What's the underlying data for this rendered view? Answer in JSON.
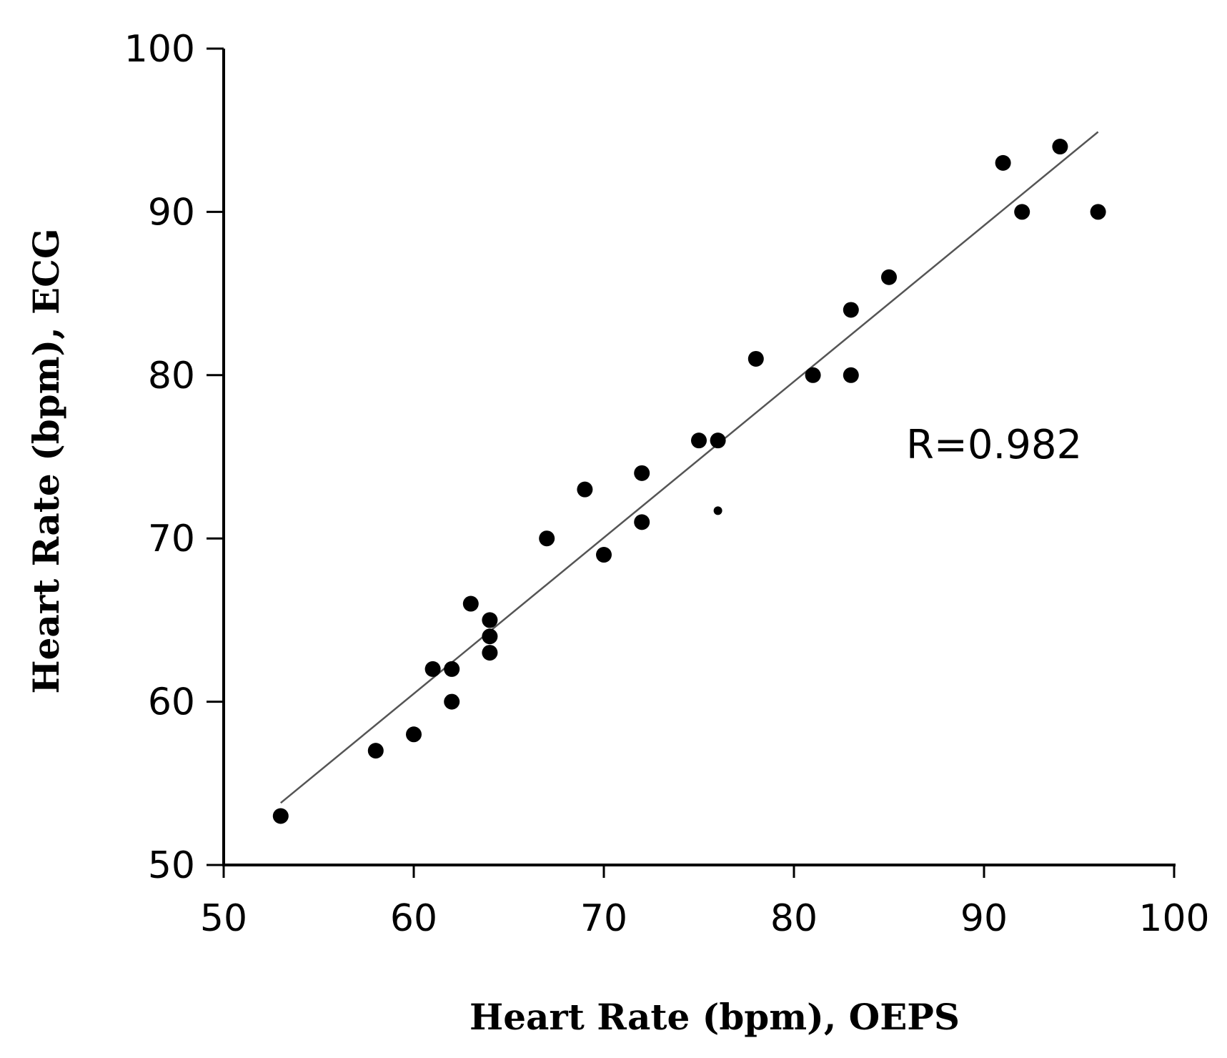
{
  "chart_data": {
    "type": "scatter",
    "title": "",
    "xlabel": "Heart Rate (bpm), OEPS",
    "ylabel": "Heart Rate (bpm), ECG",
    "xlim": [
      50,
      100
    ],
    "ylim": [
      50,
      100
    ],
    "xticks": [
      "50",
      "60",
      "70",
      "80",
      "90",
      "100"
    ],
    "yticks": [
      "50",
      "60",
      "70",
      "80",
      "90",
      "100"
    ],
    "grid": false,
    "series": [
      {
        "name": "Measurements",
        "color": "#000000",
        "points": [
          {
            "x": 53,
            "y": 53
          },
          {
            "x": 58,
            "y": 57
          },
          {
            "x": 60,
            "y": 58
          },
          {
            "x": 61,
            "y": 62
          },
          {
            "x": 62,
            "y": 62
          },
          {
            "x": 62,
            "y": 60
          },
          {
            "x": 63,
            "y": 66
          },
          {
            "x": 64,
            "y": 65
          },
          {
            "x": 64,
            "y": 64
          },
          {
            "x": 64,
            "y": 63
          },
          {
            "x": 67,
            "y": 70
          },
          {
            "x": 69,
            "y": 73
          },
          {
            "x": 70,
            "y": 69
          },
          {
            "x": 72,
            "y": 74
          },
          {
            "x": 72,
            "y": 71
          },
          {
            "x": 75,
            "y": 76
          },
          {
            "x": 76,
            "y": 76
          },
          {
            "x": 76,
            "y": 71.7
          },
          {
            "x": 78,
            "y": 81
          },
          {
            "x": 81,
            "y": 80
          },
          {
            "x": 83,
            "y": 84
          },
          {
            "x": 83,
            "y": 80
          },
          {
            "x": 85,
            "y": 86
          },
          {
            "x": 91,
            "y": 93
          },
          {
            "x": 92,
            "y": 90
          },
          {
            "x": 94,
            "y": 94
          },
          {
            "x": 96,
            "y": 90
          }
        ]
      }
    ],
    "trendline": {
      "x": [
        53,
        96
      ],
      "y": [
        53.8,
        94.9
      ],
      "color": "#555555"
    },
    "annotation": "R=0.982"
  }
}
